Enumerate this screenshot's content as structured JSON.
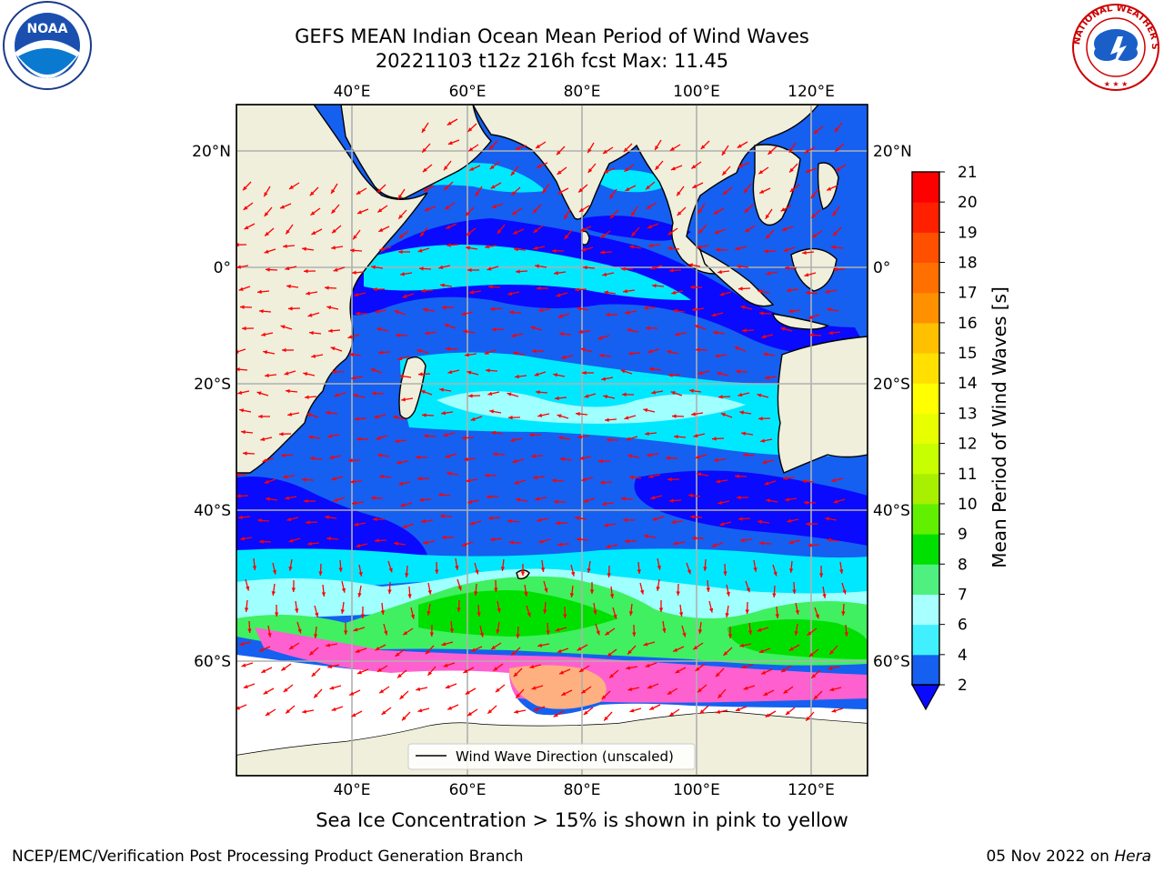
{
  "title_line1": "GEFS MEAN Indian Ocean Mean Period of Wind Waves",
  "title_line2": "20221103 t12z 216h fcst   Max: 11.45",
  "lon_ticks": [
    "40°E",
    "60°E",
    "80°E",
    "100°E",
    "120°E"
  ],
  "lat_ticks": [
    "20°N",
    "0°",
    "20°S",
    "40°S",
    "60°S"
  ],
  "legend_label": "Wind Wave Direction (unscaled)",
  "colorbar": {
    "label": "Mean Period of Wind Waves [s]",
    "ticks": [
      "2",
      "4",
      "6",
      "7",
      "8",
      "9",
      "10",
      "11",
      "12",
      "13",
      "14",
      "15",
      "16",
      "17",
      "18",
      "19",
      "20",
      "21"
    ],
    "colors": [
      "#1560f0",
      "#00c8ff",
      "#40f0ff",
      "#a8ffff",
      "#50f080",
      "#00e000",
      "#60f000",
      "#a8f000",
      "#c8ff00",
      "#e8ff00",
      "#ffff00",
      "#ffe000",
      "#ffc000",
      "#ff9000",
      "#ff7000",
      "#ff5000",
      "#ff2000",
      "#ff0000"
    ],
    "extend_color": "#0a0aff"
  },
  "colors": {
    "land": "#efefdc",
    "deep_blue": "#0a0aff",
    "blue": "#1560f0",
    "cyan": "#00e8ff",
    "light_cyan": "#a0ffff",
    "green": "#40f060",
    "arrow": "#ff0000",
    "ice_pink": "#ff60d0",
    "ice_orange": "#ffb080"
  },
  "ice_note": "Sea Ice Concentration > 15% is shown in pink to yellow",
  "footer_left": "NCEP/EMC/Verification Post Processing Product Generation Branch",
  "footer_date": "05 Nov 2022 on",
  "footer_host": "Hera",
  "logos": {
    "left": "NOAA",
    "right": "NATIONAL WEATHER SERVICE"
  }
}
